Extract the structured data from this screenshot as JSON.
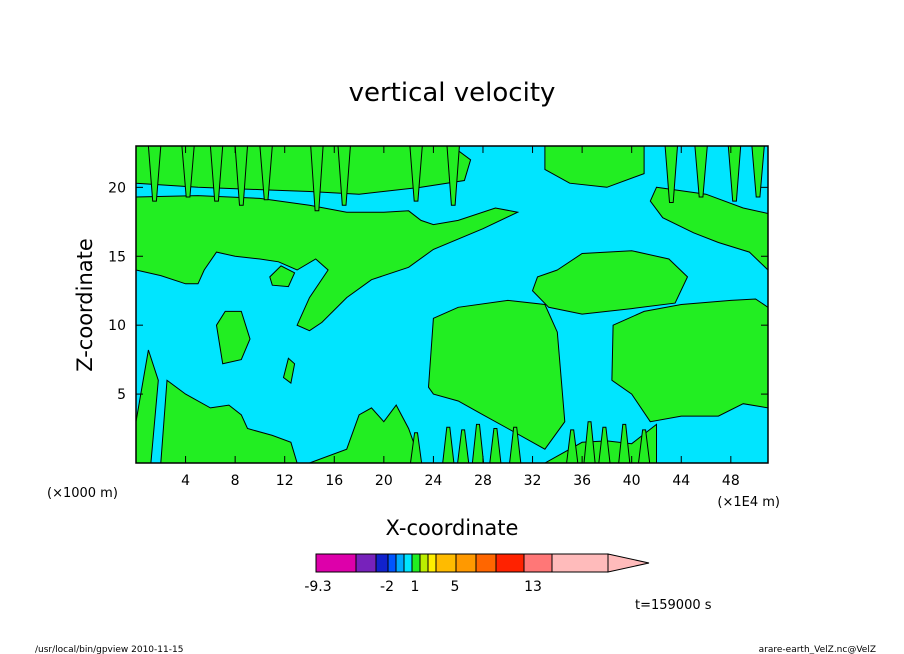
{
  "chart_data": {
    "type": "heatmap",
    "title": "vertical velocity",
    "xlabel": "X-coordinate",
    "ylabel": "Z-coordinate",
    "x_unit_left": "(×1000 m)",
    "x_unit_right": "(×1E4 m)",
    "xlim": [
      0,
      51
    ],
    "ylim": [
      0,
      23
    ],
    "x_ticks": [
      4,
      8,
      12,
      16,
      20,
      24,
      28,
      32,
      36,
      40,
      44,
      48
    ],
    "x_tick_labels": [
      "4",
      "8",
      "12",
      "16",
      "20",
      "24",
      "28",
      "32",
      "36",
      "40",
      "44",
      "48"
    ],
    "y_ticks": [
      5,
      10,
      15,
      20
    ],
    "y_tick_labels": [
      "5",
      "10",
      "15",
      "20"
    ],
    "background_color": "#00e5ff",
    "dominant_levels": [
      {
        "range": "-2 to 1",
        "color": "#00e5ff"
      },
      {
        "range": "1 to 5",
        "color": "#22ee22"
      }
    ],
    "colorbar": {
      "colors": [
        "#dd00aa",
        "#7722bb",
        "#1122cc",
        "#0055ff",
        "#00aaff",
        "#00e5ff",
        "#22ee22",
        "#bbee00",
        "#ffee00",
        "#ffbb00",
        "#ff9900",
        "#ff6600",
        "#ff2200",
        "#ff7777",
        "#ffbbbb"
      ],
      "labels": [
        "-9.3",
        "-2",
        "1",
        "5",
        "13"
      ],
      "extend": "max"
    },
    "time_label": "t=159000 s"
  },
  "footer": {
    "left": "/usr/local/bin/gpview   2010-11-15",
    "right": "arare-earth_VelZ.nc@VelZ"
  }
}
